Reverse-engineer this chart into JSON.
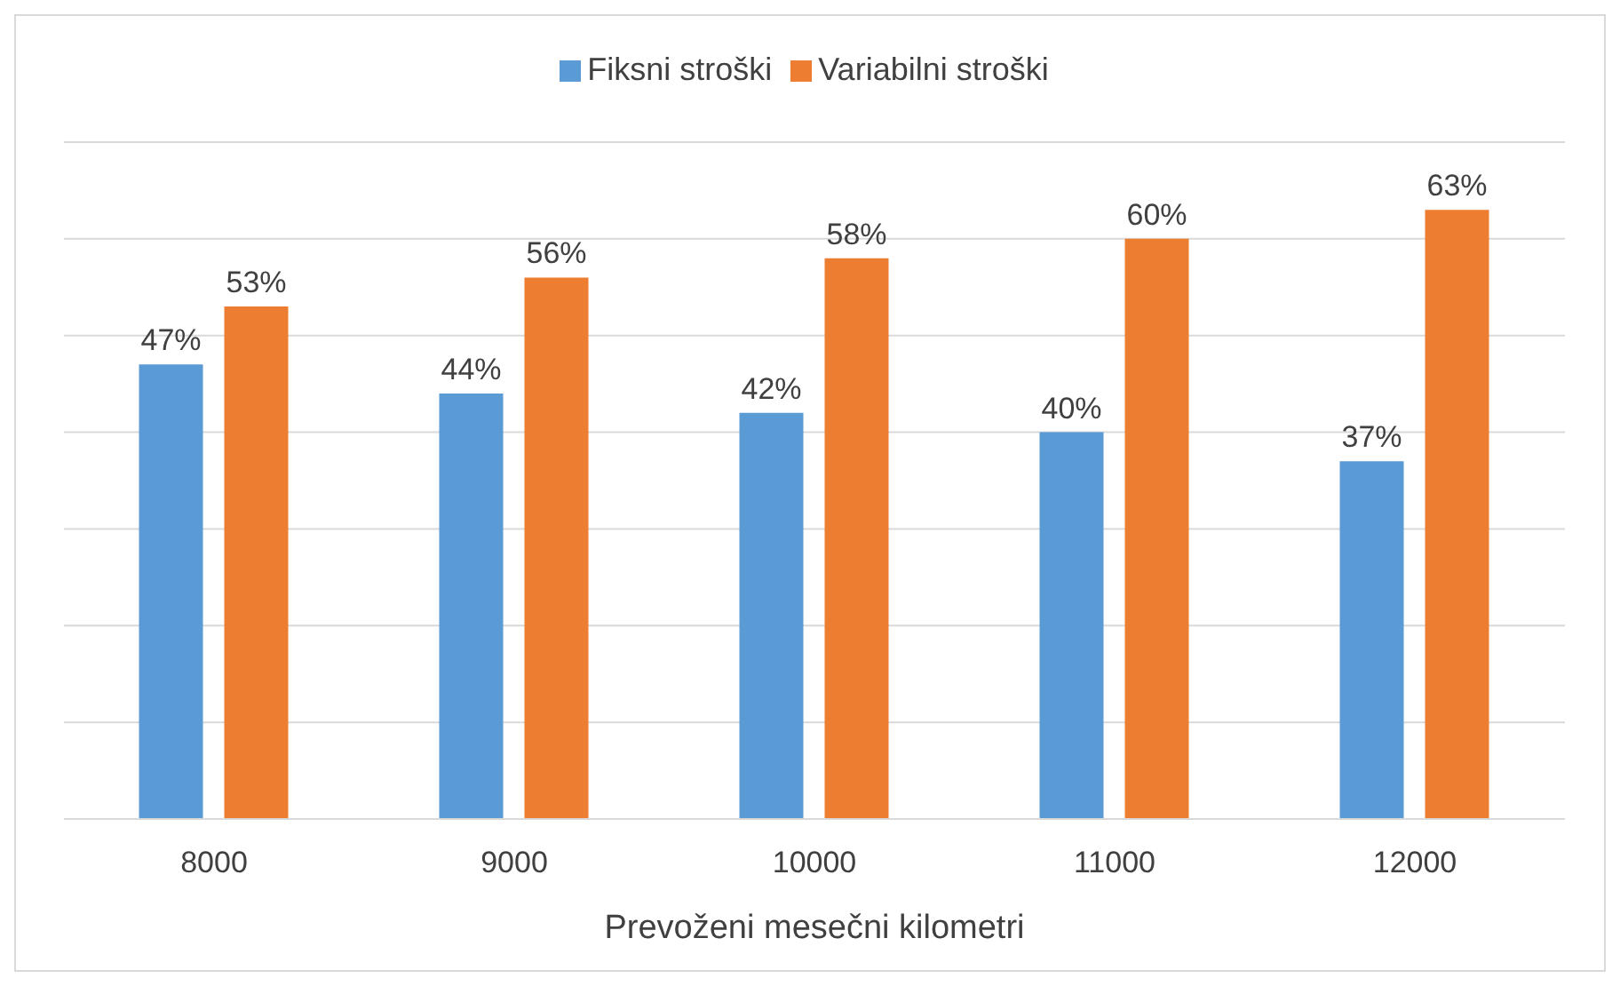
{
  "chart_data": {
    "type": "bar",
    "xlabel": "Prevoženi mesečni kilometri",
    "categories": [
      "8000",
      "9000",
      "10000",
      "11000",
      "12000"
    ],
    "series": [
      {
        "name": "Fiksni stroški",
        "color": "#5b9bd5",
        "values": [
          47,
          44,
          42,
          40,
          37
        ],
        "value_labels": [
          "47%",
          "44%",
          "42%",
          "40%",
          "37%"
        ]
      },
      {
        "name": "Variabilni stroški",
        "color": "#ed7d31",
        "values": [
          53,
          56,
          58,
          60,
          63
        ],
        "value_labels": [
          "53%",
          "56%",
          "58%",
          "60%",
          "63%"
        ]
      }
    ],
    "ylim": [
      0,
      70
    ],
    "yticks": [
      {
        "value": 0,
        "label": null
      },
      {
        "value": 10,
        "label": null
      },
      {
        "value": 20,
        "label": null
      },
      {
        "value": 30,
        "label": null
      },
      {
        "value": 40,
        "label": null
      },
      {
        "value": 50,
        "label": null
      },
      {
        "value": 60,
        "label": null
      },
      {
        "value": 70,
        "label": null
      }
    ],
    "tick_labels": "x",
    "grid": "y",
    "legend": "top"
  }
}
